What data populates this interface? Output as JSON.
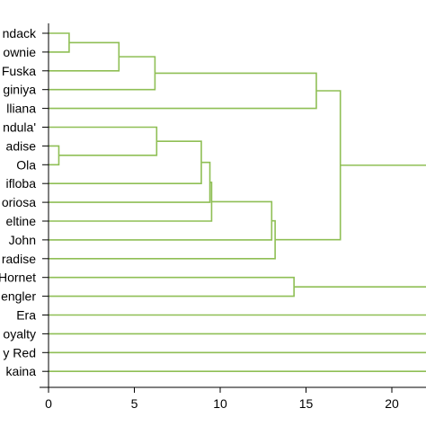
{
  "chart_data": {
    "type": "dendrogram",
    "orientation": "horizontal",
    "line_color": "#8fbf55",
    "xlim": [
      0,
      22
    ],
    "xticks": [
      0,
      5,
      10,
      15,
      20
    ],
    "leaves": [
      "ndack",
      "ownie",
      "Fuska",
      "giniya",
      "lliana",
      "ndula'",
      "adise",
      "Ola",
      "ifloba",
      "oriosa",
      "eltine",
      "John",
      "radise",
      "Hornet",
      "engler",
      "Era",
      "oyalty",
      "y Red",
      "kaina"
    ],
    "merges": [
      {
        "a": 0,
        "b": 1,
        "height": 1.2
      },
      {
        "a": 6,
        "b": 7,
        "height": 0.6
      },
      {
        "a": 19,
        "b": 2,
        "height": 4.1
      },
      {
        "a": 21,
        "b": 3,
        "height": 6.2
      },
      {
        "a": 5,
        "b": 20,
        "height": 6.3
      },
      {
        "a": 23,
        "b": 8,
        "height": 8.9
      },
      {
        "a": 24,
        "b": 9,
        "height": 9.4
      },
      {
        "a": 25,
        "b": 10,
        "height": 9.5
      },
      {
        "a": 26,
        "b": 11,
        "height": 13.0
      },
      {
        "a": 27,
        "b": 12,
        "height": 13.2
      },
      {
        "a": 13,
        "b": 14,
        "height": 14.3
      },
      {
        "a": 22,
        "b": 4,
        "height": 15.6
      },
      {
        "a": 30,
        "b": 28,
        "height": 17.0
      }
    ],
    "open_links": [
      {
        "node": 31,
        "to": 22
      },
      {
        "node": 29,
        "to": 22
      },
      {
        "node": 15,
        "to": 22
      },
      {
        "node": 16,
        "to": 22
      },
      {
        "node": 17,
        "to": 22
      },
      {
        "node": 18,
        "to": 22
      }
    ]
  }
}
